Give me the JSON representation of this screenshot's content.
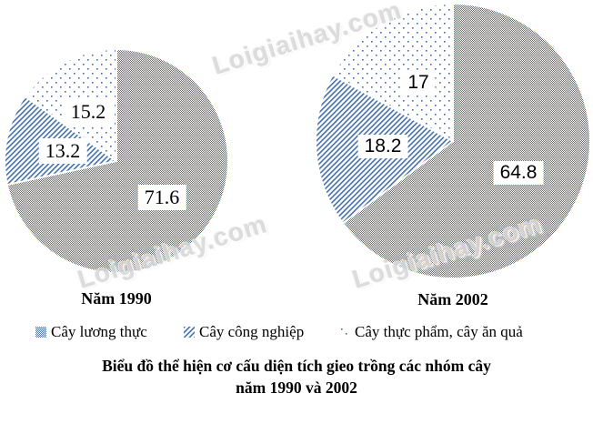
{
  "watermark": {
    "text": "Loigiaihay.com",
    "color": "#d6d6d6"
  },
  "colors": {
    "pattern_blue_checker": "#4d72a3",
    "pattern_blue_stripes": "#4470ab",
    "pattern_blue_dots": "#4169b0",
    "label_bg": "#ffffff",
    "text": "#000000"
  },
  "chart_data": [
    {
      "type": "pie",
      "title": "Năm 1990",
      "unit": "%",
      "start_angle_deg": 0,
      "direction": "clockwise",
      "slices": [
        {
          "label": "Cây lương thực",
          "value": 71.6,
          "display": "71.6",
          "pattern": "checker"
        },
        {
          "label": "Cây công nghiệp",
          "value": 13.2,
          "display": "13.2",
          "pattern": "stripes"
        },
        {
          "label": "Cây thực phẩm, cây ăn quả",
          "value": 15.2,
          "display": "15.2",
          "pattern": "dots"
        }
      ]
    },
    {
      "type": "pie",
      "title": "Năm 2002",
      "unit": "%",
      "start_angle_deg": 0,
      "direction": "clockwise",
      "slices": [
        {
          "label": "Cây lương thực",
          "value": 64.8,
          "display": "64.8",
          "pattern": "checker"
        },
        {
          "label": "Cây công nghiệp",
          "value": 18.2,
          "display": "18.2",
          "pattern": "stripes"
        },
        {
          "label": "Cây thực phẩm, cây ăn quả",
          "value": 17,
          "display": "17",
          "pattern": "dots"
        }
      ]
    }
  ],
  "legend": {
    "items": [
      {
        "label": "Cây lương thực",
        "pattern": "checker"
      },
      {
        "label": "Cây công nghiệp",
        "pattern": "stripes"
      },
      {
        "label": "Cây thực phẩm, cây ăn quả",
        "pattern": "dots"
      }
    ]
  },
  "caption": {
    "line1": "Biểu đồ thể hiện cơ cấu diện tích gieo trồng các nhóm cây",
    "line2": "năm 1990 và 2002"
  }
}
